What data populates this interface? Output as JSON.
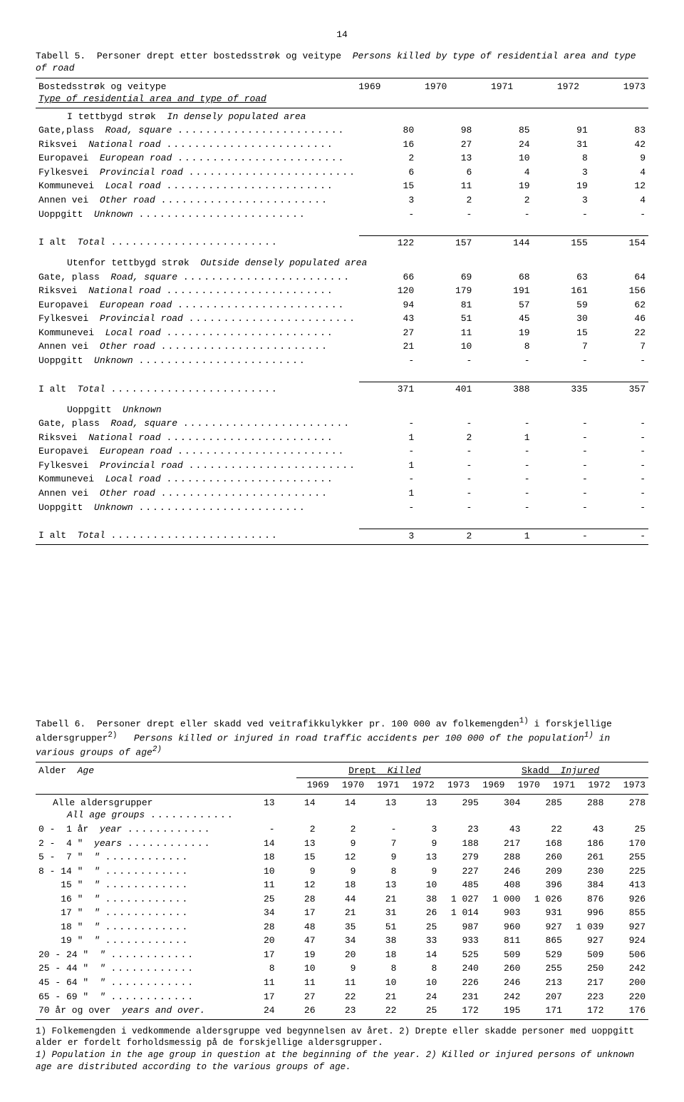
{
  "page_number": "14",
  "table5": {
    "caption_no": "Tabell 5.",
    "caption_no_text": "Personer drept etter bostedsstrøk og veitype",
    "caption_it": "Persons killed by type of residential area and type of road",
    "header_left_no": "Bostedsstrøk og veitype",
    "header_left_it": "Type of residential area and type of road",
    "years": [
      "1969",
      "1970",
      "1971",
      "1972",
      "1973"
    ],
    "sections": [
      {
        "title_no": "I tettbygd strøk",
        "title_it": "In densely populated area",
        "rows": [
          {
            "no": "Gate,plass",
            "it": "Road, square",
            "v": [
              "80",
              "98",
              "85",
              "91",
              "83"
            ]
          },
          {
            "no": "Riksvei",
            "it": "National road",
            "v": [
              "16",
              "27",
              "24",
              "31",
              "42"
            ]
          },
          {
            "no": "Europavei",
            "it": "European road",
            "v": [
              "2",
              "13",
              "10",
              "8",
              "9"
            ]
          },
          {
            "no": "Fylkesvei",
            "it": "Provincial road",
            "v": [
              "6",
              "6",
              "4",
              "3",
              "4"
            ]
          },
          {
            "no": "Kommunevei",
            "it": "Local road",
            "v": [
              "15",
              "11",
              "19",
              "19",
              "12"
            ]
          },
          {
            "no": "Annen vei",
            "it": "Other road",
            "v": [
              "3",
              "2",
              "2",
              "3",
              "4"
            ]
          },
          {
            "no": "Uoppgitt",
            "it": "Unknown",
            "v": [
              "-",
              "-",
              "-",
              "-",
              "-"
            ]
          }
        ],
        "total": {
          "no": "I alt",
          "it": "Total",
          "v": [
            "122",
            "157",
            "144",
            "155",
            "154"
          ]
        }
      },
      {
        "title_no": "Utenfor tettbygd strøk",
        "title_it": "Outside densely populated area",
        "rows": [
          {
            "no": "Gate, plass",
            "it": "Road, square",
            "v": [
              "66",
              "69",
              "68",
              "63",
              "64"
            ]
          },
          {
            "no": "Riksvei",
            "it": "National road",
            "v": [
              "120",
              "179",
              "191",
              "161",
              "156"
            ]
          },
          {
            "no": "Europavei",
            "it": "European road",
            "v": [
              "94",
              "81",
              "57",
              "59",
              "62"
            ]
          },
          {
            "no": "Fylkesvei",
            "it": "Provincial road",
            "v": [
              "43",
              "51",
              "45",
              "30",
              "46"
            ]
          },
          {
            "no": "Kommunevei",
            "it": "Local road",
            "v": [
              "27",
              "11",
              "19",
              "15",
              "22"
            ]
          },
          {
            "no": "Annen vei",
            "it": "Other road",
            "v": [
              "21",
              "10",
              "8",
              "7",
              "7"
            ]
          },
          {
            "no": "Uoppgitt",
            "it": "Unknown",
            "v": [
              "-",
              "-",
              "-",
              "-",
              "-"
            ]
          }
        ],
        "total": {
          "no": "I alt",
          "it": "Total",
          "v": [
            "371",
            "401",
            "388",
            "335",
            "357"
          ]
        }
      },
      {
        "title_no": "Uoppgitt",
        "title_it": "Unknown",
        "rows": [
          {
            "no": "Gate, plass",
            "it": "Road, square",
            "v": [
              "-",
              "-",
              "-",
              "-",
              "-"
            ]
          },
          {
            "no": "Riksvei",
            "it": "National road",
            "v": [
              "1",
              "2",
              "1",
              "-",
              "-"
            ]
          },
          {
            "no": "Europavei",
            "it": "European road",
            "v": [
              "-",
              "-",
              "-",
              "-",
              "-"
            ]
          },
          {
            "no": "Fylkesvei",
            "it": "Provincial road",
            "v": [
              "1",
              "-",
              "-",
              "-",
              "-"
            ]
          },
          {
            "no": "Kommunevei",
            "it": "Local road",
            "v": [
              "-",
              "-",
              "-",
              "-",
              "-"
            ]
          },
          {
            "no": "Annen vei",
            "it": "Other road",
            "v": [
              "1",
              "-",
              "-",
              "-",
              "-"
            ]
          },
          {
            "no": "Uoppgitt",
            "it": "Unknown",
            "v": [
              "-",
              "-",
              "-",
              "-",
              "-"
            ]
          }
        ],
        "total": {
          "no": "I alt",
          "it": "Total",
          "v": [
            "3",
            "2",
            "1",
            "-",
            "-"
          ]
        }
      }
    ]
  },
  "table6": {
    "caption_no": "Tabell 6.",
    "caption_no_text1": "Personer drept eller skadd ved veitrafikkulykker pr. 100 000 av folkemengden",
    "caption_sup1": "1)",
    "caption_no_text2": " i forskjellige aldersgrupper",
    "caption_sup2": "2)",
    "caption_it": "Persons killed or injured in road traffic accidents per 100 000 of the population",
    "caption_it_sup1": "1)",
    "caption_it2": " in various groups of age",
    "caption_it_sup2": "2)",
    "col_age_no": "Alder",
    "col_age_it": "Age",
    "group_killed_no": "Drept",
    "group_killed_it": "Killed",
    "group_injured_no": "Skadd",
    "group_injured_it": "Injured",
    "years": [
      "1969",
      "1970",
      "1971",
      "1972",
      "1973",
      "1969",
      "1970",
      "1971",
      "1972",
      "1973"
    ],
    "rows": [
      {
        "lbl_no": "Alle aldersgrupper",
        "lbl_it": "All age groups",
        "dots": "short",
        "v": [
          "13",
          "14",
          "14",
          "13",
          "13",
          "295",
          "304",
          "285",
          "288",
          "278"
        ]
      },
      {
        "lbl_no": "0 -  1 år",
        "lbl_it": "year",
        "dots": "short",
        "v": [
          "-",
          "2",
          "2",
          "-",
          "3",
          "23",
          "43",
          "22",
          "43",
          "25"
        ]
      },
      {
        "lbl_no": "2 -  4 \"",
        "lbl_it": "years",
        "dots": "short",
        "v": [
          "14",
          "13",
          "9",
          "7",
          "9",
          "188",
          "217",
          "168",
          "186",
          "170"
        ]
      },
      {
        "lbl_no": "5 -  7 \"",
        "lbl_it": "\"",
        "dots": "short",
        "v": [
          "18",
          "15",
          "12",
          "9",
          "13",
          "279",
          "288",
          "260",
          "261",
          "255"
        ]
      },
      {
        "lbl_no": "8 - 14 \"",
        "lbl_it": "\"",
        "dots": "short",
        "v": [
          "10",
          "9",
          "9",
          "8",
          "9",
          "227",
          "246",
          "209",
          "230",
          "225"
        ]
      },
      {
        "lbl_no": "    15 \"",
        "lbl_it": "\"",
        "dots": "short",
        "v": [
          "11",
          "12",
          "18",
          "13",
          "10",
          "485",
          "408",
          "396",
          "384",
          "413"
        ]
      },
      {
        "lbl_no": "    16 \"",
        "lbl_it": "\"",
        "dots": "short",
        "v": [
          "25",
          "28",
          "44",
          "21",
          "38",
          "1 027",
          "1 000",
          "1 026",
          "876",
          "926"
        ]
      },
      {
        "lbl_no": "    17 \"",
        "lbl_it": "\"",
        "dots": "short",
        "v": [
          "34",
          "17",
          "21",
          "31",
          "26",
          "1 014",
          "903",
          "931",
          "996",
          "855"
        ]
      },
      {
        "lbl_no": "    18 \"",
        "lbl_it": "\"",
        "dots": "short",
        "v": [
          "28",
          "48",
          "35",
          "51",
          "25",
          "987",
          "960",
          "927",
          "1 039",
          "927"
        ]
      },
      {
        "lbl_no": "    19 \"",
        "lbl_it": "\"",
        "dots": "short",
        "v": [
          "20",
          "47",
          "34",
          "38",
          "33",
          "933",
          "811",
          "865",
          "927",
          "924"
        ]
      },
      {
        "lbl_no": "20 - 24 \"",
        "lbl_it": "\"",
        "dots": "short",
        "v": [
          "17",
          "19",
          "20",
          "18",
          "14",
          "525",
          "509",
          "529",
          "509",
          "506"
        ]
      },
      {
        "lbl_no": "25 - 44 \"",
        "lbl_it": "\"",
        "dots": "short",
        "v": [
          "8",
          "10",
          "9",
          "8",
          "8",
          "240",
          "260",
          "255",
          "250",
          "242"
        ]
      },
      {
        "lbl_no": "45 - 64 \"",
        "lbl_it": "\"",
        "dots": "short",
        "v": [
          "11",
          "11",
          "11",
          "10",
          "10",
          "226",
          "246",
          "213",
          "217",
          "200"
        ]
      },
      {
        "lbl_no": "65 - 69 \"",
        "lbl_it": "\"",
        "dots": "short",
        "v": [
          "17",
          "27",
          "22",
          "21",
          "24",
          "231",
          "242",
          "207",
          "223",
          "220"
        ]
      },
      {
        "lbl_no": "70 år og over",
        "lbl_it": "years and over.",
        "dots": "none",
        "v": [
          "24",
          "26",
          "23",
          "22",
          "25",
          "172",
          "195",
          "171",
          "172",
          "176"
        ]
      }
    ],
    "footnote_no": "1) Folkemengden i vedkommende aldersgruppe ved begynnelsen av året.  2) Drepte eller skadde personer med uoppgitt alder er fordelt forholdsmessig på de forskjellige aldersgrupper.",
    "footnote_it": "1) Population in the age group in question at the beginning of the year.  2) Killed or injured persons of unknown age are distributed according to the various groups of age."
  },
  "style": {
    "font_family": "Courier New",
    "text_color": "#000000",
    "background": "#ffffff",
    "rule_color": "#000000"
  }
}
